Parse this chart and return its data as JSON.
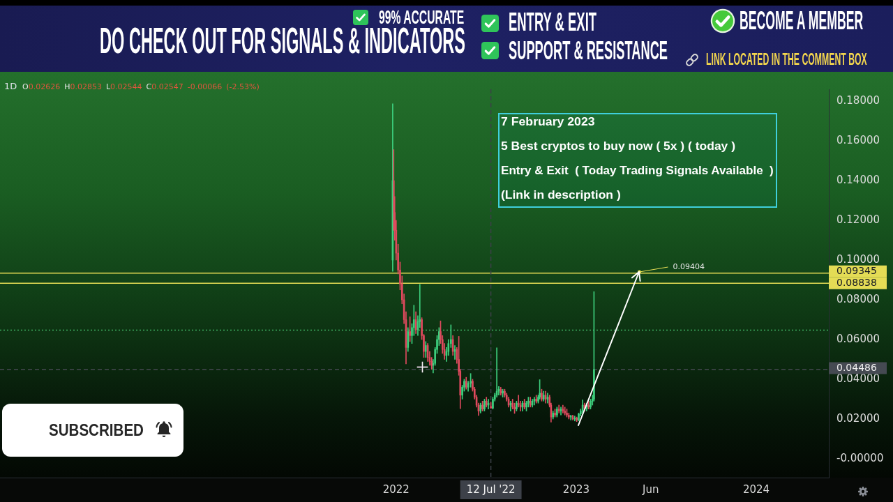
{
  "chart_data": {
    "type": "candlestick",
    "title": "1D",
    "subtitle": "O0.02626 H0.02853 L0.02544 C0.02547 -0.00066 (-2.53%)",
    "series": [
      {
        "x": [
          "2021-12-25",
          "2021-12-27",
          "2021-12-29",
          "2022-01-01",
          "2022-01-05",
          "2022-01-09",
          "2022-01-13",
          "2022-01-17",
          "2022-01-21",
          "2022-01-25",
          "2022-01-29",
          "2022-02-02",
          "2022-02-06",
          "2022-02-10",
          "2022-02-14",
          "2022-02-18",
          "2022-02-22",
          "2022-02-26",
          "2022-03-02",
          "2022-03-06",
          "2022-03-10",
          "2022-03-14",
          "2022-03-17",
          "2022-03-21",
          "2022-03-25",
          "2022-03-29",
          "2022-04-01",
          "2022-04-05",
          "2022-04-09",
          "2022-04-13",
          "2022-04-17",
          "2022-04-22",
          "2022-04-26",
          "2022-04-30",
          "2022-05-04",
          "2022-05-08",
          "2022-05-11",
          "2022-05-15",
          "2022-05-19",
          "2022-05-23",
          "2022-05-27",
          "2022-06-01",
          "2022-06-05",
          "2022-06-09",
          "2022-06-13",
          "2022-06-17",
          "2022-06-21",
          "2022-06-25",
          "2022-06-29",
          "2022-07-03",
          "2022-07-07",
          "2022-07-12",
          "2022-07-16",
          "2022-07-20",
          "2022-07-24",
          "2022-07-28",
          "2022-08-01",
          "2022-08-05",
          "2022-08-09",
          "2022-08-13",
          "2022-08-17",
          "2022-08-21",
          "2022-08-25",
          "2022-08-29",
          "2022-09-02",
          "2022-09-06",
          "2022-09-10",
          "2022-09-14",
          "2022-09-18",
          "2022-09-22",
          "2022-09-26",
          "2022-09-30",
          "2022-10-04",
          "2022-10-08",
          "2022-10-12",
          "2022-10-16",
          "2022-10-19",
          "2022-10-23",
          "2022-10-27",
          "2022-10-31",
          "2022-11-04",
          "2022-11-08",
          "2022-11-11",
          "2022-11-15",
          "2022-11-19",
          "2022-11-23",
          "2022-11-27",
          "2022-12-01",
          "2022-12-05",
          "2022-12-09",
          "2022-12-13",
          "2022-12-17",
          "2022-12-21",
          "2022-12-25",
          "2022-12-29",
          "2023-01-02",
          "2023-01-06",
          "2023-01-10",
          "2023-01-14",
          "2023-01-18",
          "2023-01-22",
          "2023-01-26",
          "2023-01-30",
          "2023-02-03",
          "2023-02-06"
        ],
        "ohlc": [
          [
            0.1,
            0.1787,
            0.0943,
            0.14
          ],
          [
            0.14,
            0.1556,
            0.115,
            0.124
          ],
          [
            0.124,
            0.132,
            0.11,
            0.115
          ],
          [
            0.115,
            0.12,
            0.1,
            0.1035
          ],
          [
            0.1035,
            0.108,
            0.093,
            0.095
          ],
          [
            0.095,
            0.099,
            0.085,
            0.088
          ],
          [
            0.088,
            0.092,
            0.078,
            0.08
          ],
          [
            0.08,
            0.083,
            0.068,
            0.07
          ],
          [
            0.07,
            0.074,
            0.0477,
            0.056
          ],
          [
            0.056,
            0.066,
            0.054,
            0.064
          ],
          [
            0.064,
            0.0715,
            0.059,
            0.062
          ],
          [
            0.062,
            0.068,
            0.058,
            0.066
          ],
          [
            0.066,
            0.0773,
            0.062,
            0.07
          ],
          [
            0.07,
            0.074,
            0.063,
            0.065
          ],
          [
            0.065,
            0.072,
            0.062,
            0.069
          ],
          [
            0.069,
            0.0878,
            0.066,
            0.07
          ],
          [
            0.07,
            0.071,
            0.06,
            0.062
          ],
          [
            0.062,
            0.0626,
            0.051,
            0.054
          ],
          [
            0.054,
            0.059,
            0.051,
            0.057
          ],
          [
            0.057,
            0.058,
            0.049,
            0.051
          ],
          [
            0.051,
            0.054,
            0.047,
            0.049
          ],
          [
            0.049,
            0.051,
            0.045,
            0.047
          ],
          [
            0.047,
            0.05,
            0.0432,
            0.048
          ],
          [
            0.048,
            0.056,
            0.047,
            0.055
          ],
          [
            0.055,
            0.062,
            0.053,
            0.06
          ],
          [
            0.06,
            0.066,
            0.057,
            0.064
          ],
          [
            0.064,
            0.0694,
            0.058,
            0.06
          ],
          [
            0.06,
            0.062,
            0.053,
            0.055
          ],
          [
            0.055,
            0.058,
            0.05,
            0.052
          ],
          [
            0.052,
            0.056,
            0.049,
            0.054
          ],
          [
            0.054,
            0.06,
            0.052,
            0.058
          ],
          [
            0.058,
            0.0674,
            0.056,
            0.06
          ],
          [
            0.06,
            0.062,
            0.052,
            0.054
          ],
          [
            0.054,
            0.057,
            0.05,
            0.055
          ],
          [
            0.055,
            0.056,
            0.048,
            0.05
          ],
          [
            0.05,
            0.0616,
            0.042,
            0.044
          ],
          [
            0.044,
            0.045,
            0.0252,
            0.032
          ],
          [
            0.032,
            0.037,
            0.03,
            0.036
          ],
          [
            0.036,
            0.04,
            0.034,
            0.039
          ],
          [
            0.039,
            0.041,
            0.035,
            0.036
          ],
          [
            0.036,
            0.039,
            0.034,
            0.038
          ],
          [
            0.038,
            0.0429,
            0.036,
            0.039
          ],
          [
            0.039,
            0.04,
            0.034,
            0.035
          ],
          [
            0.035,
            0.036,
            0.03,
            0.031
          ],
          [
            0.031,
            0.032,
            0.026,
            0.027
          ],
          [
            0.027,
            0.028,
            0.0218,
            0.024
          ],
          [
            0.024,
            0.028,
            0.023,
            0.027
          ],
          [
            0.027,
            0.029,
            0.024,
            0.025
          ],
          [
            0.025,
            0.03,
            0.024,
            0.029
          ],
          [
            0.029,
            0.031,
            0.026,
            0.027
          ],
          [
            0.027,
            0.03,
            0.025,
            0.028
          ],
          [
            0.02626,
            0.02853,
            0.02544,
            0.02547
          ],
          [
            0.0255,
            0.031,
            0.025,
            0.03
          ],
          [
            0.03,
            0.033,
            0.029,
            0.032
          ],
          [
            0.032,
            0.0558,
            0.031,
            0.034
          ],
          [
            0.034,
            0.0364,
            0.032,
            0.035
          ],
          [
            0.035,
            0.036,
            0.032,
            0.033
          ],
          [
            0.033,
            0.035,
            0.031,
            0.034
          ],
          [
            0.034,
            0.035,
            0.031,
            0.032
          ],
          [
            0.032,
            0.033,
            0.029,
            0.03
          ],
          [
            0.03,
            0.031,
            0.026,
            0.027
          ],
          [
            0.027,
            0.029,
            0.024,
            0.028
          ],
          [
            0.028,
            0.03,
            0.025,
            0.026
          ],
          [
            0.026,
            0.028,
            0.0228,
            0.025
          ],
          [
            0.025,
            0.029,
            0.024,
            0.028
          ],
          [
            0.028,
            0.032,
            0.026,
            0.027
          ],
          [
            0.027,
            0.029,
            0.024,
            0.026
          ],
          [
            0.026,
            0.029,
            0.024,
            0.028
          ],
          [
            0.028,
            0.03,
            0.025,
            0.026
          ],
          [
            0.026,
            0.029,
            0.024,
            0.028
          ],
          [
            0.028,
            0.031,
            0.026,
            0.029
          ],
          [
            0.029,
            0.031,
            0.026,
            0.027
          ],
          [
            0.027,
            0.03,
            0.026,
            0.029
          ],
          [
            0.029,
            0.031,
            0.027,
            0.03
          ],
          [
            0.03,
            0.032,
            0.028,
            0.029
          ],
          [
            0.029,
            0.032,
            0.028,
            0.031
          ],
          [
            0.031,
            0.0398,
            0.03,
            0.033
          ],
          [
            0.033,
            0.035,
            0.029,
            0.03
          ],
          [
            0.03,
            0.034,
            0.029,
            0.032
          ],
          [
            0.032,
            0.034,
            0.028,
            0.03
          ],
          [
            0.03,
            0.033,
            0.028,
            0.031
          ],
          [
            0.031,
            0.032,
            0.026,
            0.027
          ],
          [
            0.027,
            0.028,
            0.0184,
            0.021
          ],
          [
            0.021,
            0.024,
            0.02,
            0.023
          ],
          [
            0.023,
            0.025,
            0.021,
            0.022
          ],
          [
            0.022,
            0.026,
            0.021,
            0.025
          ],
          [
            0.025,
            0.027,
            0.023,
            0.024
          ],
          [
            0.024,
            0.026,
            0.022,
            0.025
          ],
          [
            0.025,
            0.027,
            0.023,
            0.024
          ],
          [
            0.024,
            0.026,
            0.022,
            0.023
          ],
          [
            0.023,
            0.025,
            0.021,
            0.022
          ],
          [
            0.022,
            0.023,
            0.02,
            0.021
          ],
          [
            0.021,
            0.022,
            0.0195,
            0.0215
          ],
          [
            0.0215,
            0.022,
            0.0195,
            0.02
          ],
          [
            0.02,
            0.0215,
            0.019,
            0.0205
          ],
          [
            0.0205,
            0.021,
            0.0187,
            0.0195
          ],
          [
            0.0195,
            0.023,
            0.019,
            0.0225
          ],
          [
            0.0225,
            0.025,
            0.0215,
            0.024
          ],
          [
            0.024,
            0.0296,
            0.023,
            0.027
          ],
          [
            0.027,
            0.028,
            0.024,
            0.025
          ],
          [
            0.025,
            0.028,
            0.024,
            0.027
          ],
          [
            0.027,
            0.029,
            0.025,
            0.026
          ],
          [
            0.026,
            0.03,
            0.025,
            0.029
          ],
          [
            0.029,
            0.032,
            0.027,
            0.03
          ],
          [
            0.03,
            0.0841,
            0.029,
            0.0449
          ]
        ],
        "colors": [
          "#3dcf7d",
          "#df4a5e",
          "#df4a5e",
          "#df4a5e",
          "#df4a5e",
          "#df4a5e",
          "#df4a5e",
          "#df4a5e",
          "#df4a5e",
          "#3dcf7d",
          "#df4a5e",
          "#3dcf7d",
          "#3dcf7d",
          "#df4a5e",
          "#3dcf7d",
          "#3dcf7d",
          "#df4a5e",
          "#df4a5e",
          "#3dcf7d",
          "#df4a5e",
          "#df4a5e",
          "#df4a5e",
          "#3dcf7d",
          "#3dcf7d",
          "#3dcf7d",
          "#3dcf7d",
          "#df4a5e",
          "#df4a5e",
          "#df4a5e",
          "#3dcf7d",
          "#3dcf7d",
          "#3dcf7d",
          "#df4a5e",
          "#3dcf7d",
          "#df4a5e",
          "#df4a5e",
          "#df4a5e",
          "#3dcf7d",
          "#3dcf7d",
          "#df4a5e",
          "#3dcf7d",
          "#3dcf7d",
          "#df4a5e",
          "#df4a5e",
          "#df4a5e",
          "#df4a5e",
          "#3dcf7d",
          "#df4a5e",
          "#3dcf7d",
          "#df4a5e",
          "#3dcf7d",
          "#df4a5e",
          "#3dcf7d",
          "#3dcf7d",
          "#3dcf7d",
          "#3dcf7d",
          "#df4a5e",
          "#3dcf7d",
          "#df4a5e",
          "#df4a5e",
          "#df4a5e",
          "#3dcf7d",
          "#df4a5e",
          "#df4a5e",
          "#3dcf7d",
          "#df4a5e",
          "#df4a5e",
          "#3dcf7d",
          "#df4a5e",
          "#3dcf7d",
          "#3dcf7d",
          "#df4a5e",
          "#3dcf7d",
          "#3dcf7d",
          "#df4a5e",
          "#3dcf7d",
          "#3dcf7d",
          "#df4a5e",
          "#3dcf7d",
          "#df4a5e",
          "#3dcf7d",
          "#df4a5e",
          "#df4a5e",
          "#3dcf7d",
          "#df4a5e",
          "#3dcf7d",
          "#df4a5e",
          "#3dcf7d",
          "#df4a5e",
          "#df4a5e",
          "#df4a5e",
          "#df4a5e",
          "#3dcf7d",
          "#df4a5e",
          "#3dcf7d",
          "#df4a5e",
          "#3dcf7d",
          "#3dcf7d",
          "#3dcf7d",
          "#df4a5e",
          "#3dcf7d",
          "#df4a5e",
          "#3dcf7d",
          "#3dcf7d",
          "#3dcf7d"
        ]
      }
    ],
    "xlim": [
      "2019-10-21",
      "2024-05-27"
    ],
    "xticks": [
      {
        "value": "2022-01-01",
        "label": "2022"
      },
      {
        "value": "2023-01-01",
        "label": "2023"
      },
      {
        "value": "2023-06-01",
        "label": "Jun"
      },
      {
        "value": "2024-01-01",
        "label": "2024"
      }
    ],
    "ylim": [
      -0.0095,
      0.186
    ],
    "yticks": [
      {
        "value": 0,
        "label": "-0.00000"
      },
      {
        "value": 0.02,
        "label": "0.02000"
      },
      {
        "value": 0.04,
        "label": "0.04000"
      },
      {
        "value": 0.06,
        "label": "0.06000"
      },
      {
        "value": 0.08,
        "label": "0.08000"
      },
      {
        "value": 0.1,
        "label": "0.10000"
      },
      {
        "value": 0.12,
        "label": "0.12000"
      },
      {
        "value": 0.14,
        "label": "0.14000"
      },
      {
        "value": 0.16,
        "label": "0.16000"
      },
      {
        "value": 0.18,
        "label": "0.18000"
      }
    ],
    "ref_lines": [
      {
        "axis": "y",
        "value": 0.09345,
        "label": "0.09345",
        "color": "#e4dc55"
      },
      {
        "axis": "y",
        "value": 0.08838,
        "label": "0.08838",
        "color": "#e4dc55"
      },
      {
        "axis": "y",
        "value": 0.04486,
        "label": "0.04486",
        "color": "#454a52",
        "line_style": "dashed"
      },
      {
        "axis": "y",
        "value": 0.0647,
        "color": "#3fae62",
        "line_style": "dotted"
      },
      {
        "axis": "x",
        "value": "2022-07-12",
        "label": "12 Jul '22",
        "color": "#3d4149",
        "line_style": "dashed"
      }
    ],
    "annotations": [
      "DO CHECK OUT FOR SIGNALS & INDICATORS",
      "99% ACCURATE",
      "ENTRY & EXIT",
      "SUPPORT & RESISTANCE",
      "BECOME A MEMBER",
      "LINK LOCATED IN THE COMMENT BOX",
      "7 February 2023",
      "5 Best cryptos to buy now ( 5x ) ( today )",
      "Entry & Exit  ( Today Trading Signals Available  )",
      "(Link in description )",
      {
        "text": "0.09404",
        "x": "2023-05-09",
        "y": 0.09404
      },
      "SUBSCRIBED"
    ]
  }
}
